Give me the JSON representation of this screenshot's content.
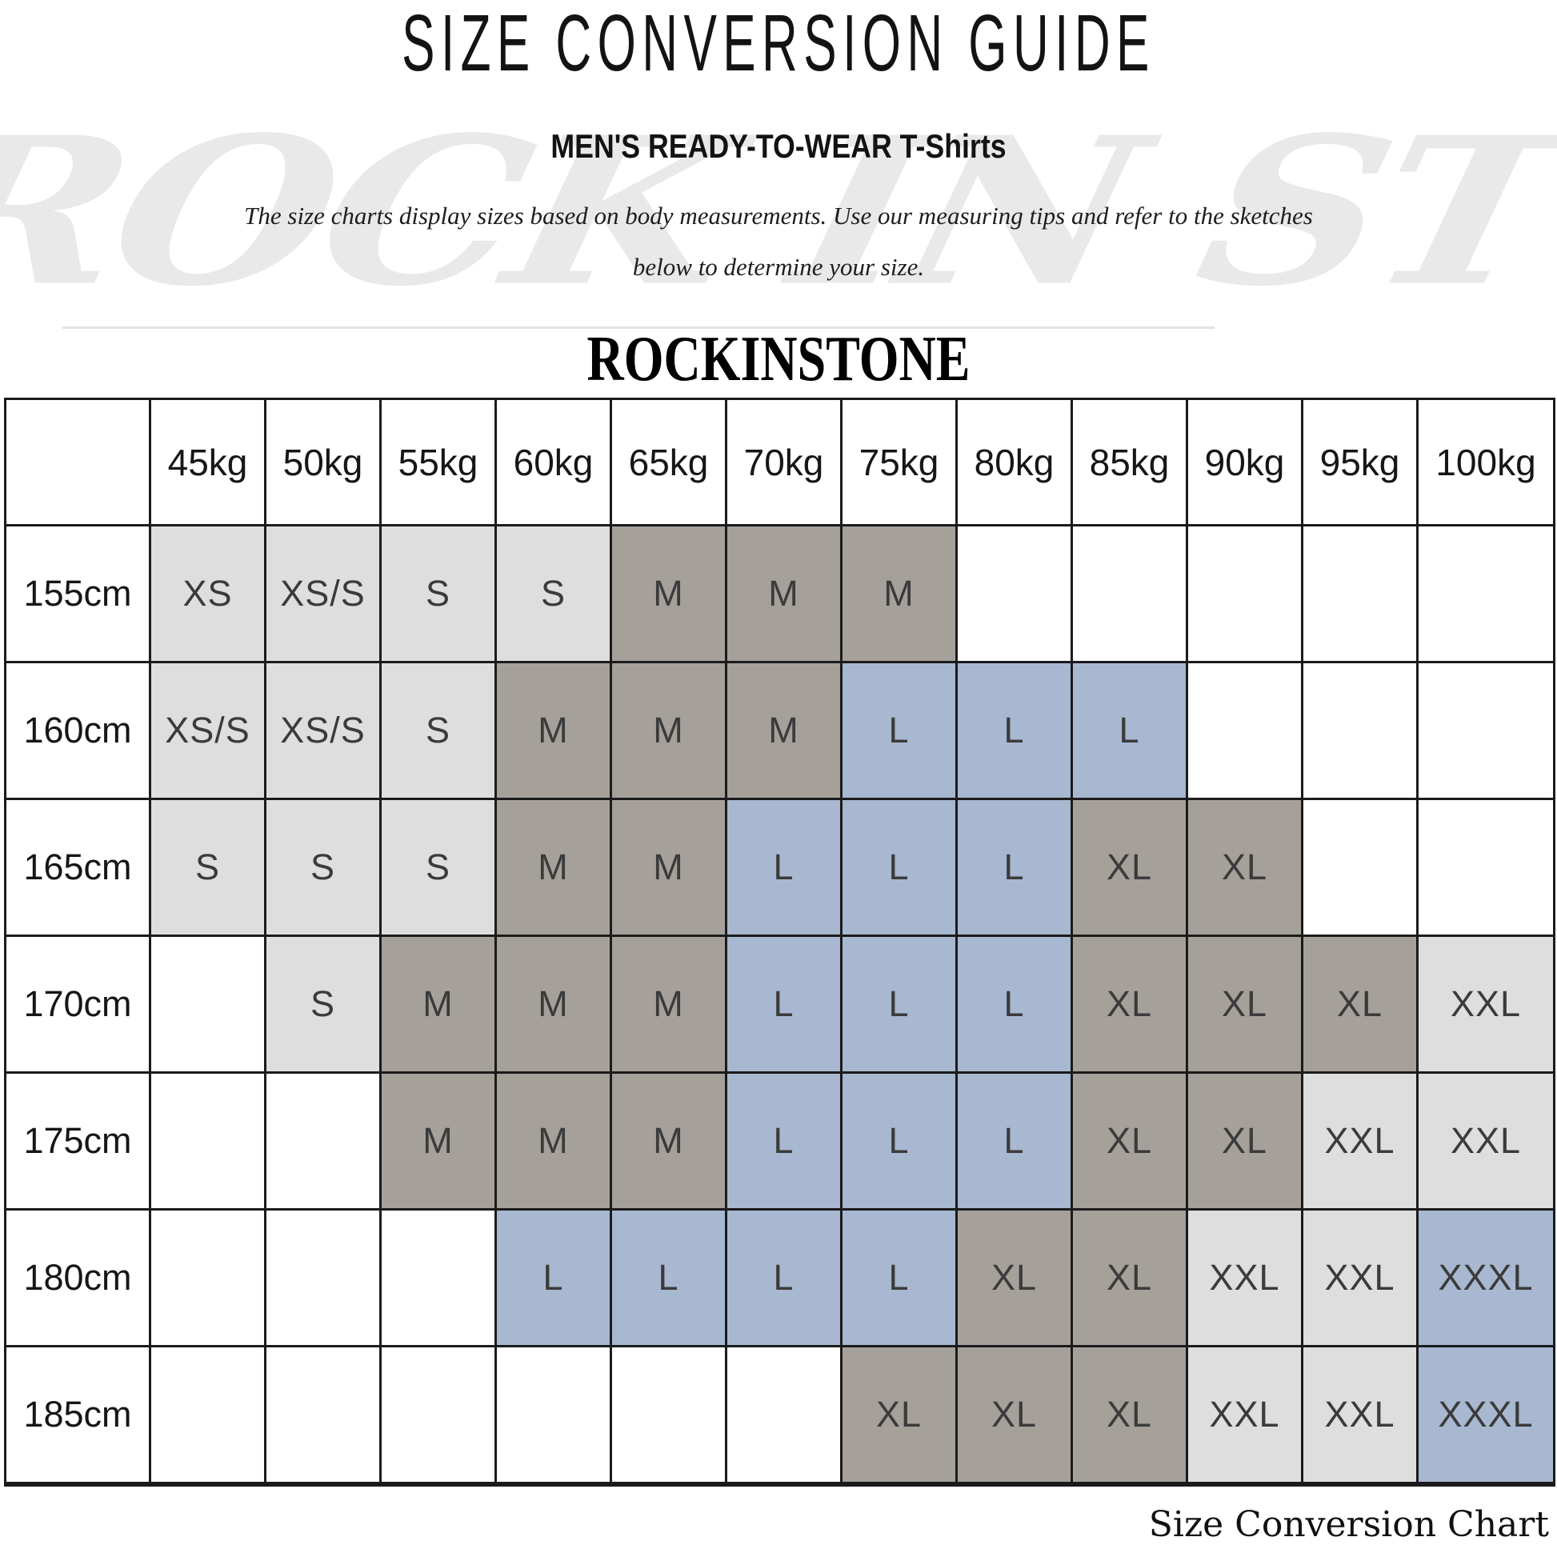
{
  "page": {
    "title": "SIZE CONVERSION GUIDE",
    "subtitle": "MEN'S READY-TO-WEAR T-Shirts",
    "description": [
      "The size charts display sizes based on body measurements.  Use our measuring tips and refer to the sketches",
      "below to determine your size."
    ],
    "brand": "ROCKINSTONE",
    "watermark_text": "ROCK IN STONE",
    "caption": "Size Conversion Chart"
  },
  "colors": {
    "cell_light": "#dedede",
    "cell_taupe": "#a6a09b",
    "cell_blue": "#a8b8d0",
    "diagonal_line": "#8a5f3d",
    "border": "#1b1b1b",
    "watermark": "#e9e9e9"
  },
  "chart_data": {
    "type": "table",
    "title": "SIZE CONVERSION GUIDE",
    "columns_axis": "body weight",
    "rows_axis": "body height",
    "weight_headers": [
      "45kg",
      "50kg",
      "55kg",
      "60kg",
      "65kg",
      "70kg",
      "75kg",
      "80kg",
      "85kg",
      "90kg",
      "95kg",
      "100kg"
    ],
    "rows": [
      {
        "height": "155cm",
        "cells": [
          {
            "size": "XS",
            "tone": "light"
          },
          {
            "size": "XS/S",
            "tone": "light"
          },
          {
            "size": "S",
            "tone": "light"
          },
          {
            "size": "S",
            "tone": "light"
          },
          {
            "size": "M",
            "tone": "taupe"
          },
          {
            "size": "M",
            "tone": "taupe"
          },
          {
            "size": "M",
            "tone": "taupe"
          },
          {
            "size": "",
            "tone": "none"
          },
          {
            "size": "",
            "tone": "none"
          },
          {
            "size": "",
            "tone": "none"
          },
          {
            "size": "",
            "tone": "none"
          },
          {
            "size": "",
            "tone": "none"
          }
        ]
      },
      {
        "height": "160cm",
        "cells": [
          {
            "size": "XS/S",
            "tone": "light"
          },
          {
            "size": "XS/S",
            "tone": "light"
          },
          {
            "size": "S",
            "tone": "light"
          },
          {
            "size": "M",
            "tone": "taupe"
          },
          {
            "size": "M",
            "tone": "taupe"
          },
          {
            "size": "M",
            "tone": "taupe"
          },
          {
            "size": "L",
            "tone": "blue"
          },
          {
            "size": "L",
            "tone": "blue"
          },
          {
            "size": "L",
            "tone": "blue"
          },
          {
            "size": "",
            "tone": "none"
          },
          {
            "size": "",
            "tone": "none"
          },
          {
            "size": "",
            "tone": "none"
          }
        ]
      },
      {
        "height": "165cm",
        "cells": [
          {
            "size": "S",
            "tone": "light"
          },
          {
            "size": "S",
            "tone": "light"
          },
          {
            "size": "S",
            "tone": "light"
          },
          {
            "size": "M",
            "tone": "taupe"
          },
          {
            "size": "M",
            "tone": "taupe"
          },
          {
            "size": "L",
            "tone": "blue"
          },
          {
            "size": "L",
            "tone": "blue"
          },
          {
            "size": "L",
            "tone": "blue"
          },
          {
            "size": "XL",
            "tone": "taupe"
          },
          {
            "size": "XL",
            "tone": "taupe"
          },
          {
            "size": "",
            "tone": "none"
          },
          {
            "size": "",
            "tone": "none"
          }
        ]
      },
      {
        "height": "170cm",
        "cells": [
          {
            "size": "",
            "tone": "none"
          },
          {
            "size": "S",
            "tone": "light"
          },
          {
            "size": "M",
            "tone": "taupe"
          },
          {
            "size": "M",
            "tone": "taupe"
          },
          {
            "size": "M",
            "tone": "taupe"
          },
          {
            "size": "L",
            "tone": "blue"
          },
          {
            "size": "L",
            "tone": "blue"
          },
          {
            "size": "L",
            "tone": "blue"
          },
          {
            "size": "XL",
            "tone": "taupe"
          },
          {
            "size": "XL",
            "tone": "taupe"
          },
          {
            "size": "XL",
            "tone": "taupe"
          },
          {
            "size": "XXL",
            "tone": "light"
          }
        ]
      },
      {
        "height": "175cm",
        "cells": [
          {
            "size": "",
            "tone": "none"
          },
          {
            "size": "",
            "tone": "none"
          },
          {
            "size": "M",
            "tone": "taupe"
          },
          {
            "size": "M",
            "tone": "taupe"
          },
          {
            "size": "M",
            "tone": "taupe"
          },
          {
            "size": "L",
            "tone": "blue"
          },
          {
            "size": "L",
            "tone": "blue"
          },
          {
            "size": "L",
            "tone": "blue"
          },
          {
            "size": "XL",
            "tone": "taupe"
          },
          {
            "size": "XL",
            "tone": "taupe"
          },
          {
            "size": "XXL",
            "tone": "light"
          },
          {
            "size": "XXL",
            "tone": "light"
          }
        ]
      },
      {
        "height": "180cm",
        "cells": [
          {
            "size": "",
            "tone": "none"
          },
          {
            "size": "",
            "tone": "none"
          },
          {
            "size": "",
            "tone": "none"
          },
          {
            "size": "L",
            "tone": "blue"
          },
          {
            "size": "L",
            "tone": "blue"
          },
          {
            "size": "L",
            "tone": "blue"
          },
          {
            "size": "L",
            "tone": "blue"
          },
          {
            "size": "XL",
            "tone": "taupe"
          },
          {
            "size": "XL",
            "tone": "taupe"
          },
          {
            "size": "XXL",
            "tone": "light"
          },
          {
            "size": "XXL",
            "tone": "light"
          },
          {
            "size": "XXXL",
            "tone": "blue"
          }
        ]
      },
      {
        "height": "185cm",
        "cells": [
          {
            "size": "",
            "tone": "none"
          },
          {
            "size": "",
            "tone": "none"
          },
          {
            "size": "",
            "tone": "none"
          },
          {
            "size": "",
            "tone": "none"
          },
          {
            "size": "",
            "tone": "none"
          },
          {
            "size": "",
            "tone": "none"
          },
          {
            "size": "XL",
            "tone": "taupe"
          },
          {
            "size": "XL",
            "tone": "taupe"
          },
          {
            "size": "XL",
            "tone": "taupe"
          },
          {
            "size": "XXL",
            "tone": "light"
          },
          {
            "size": "XXL",
            "tone": "light"
          },
          {
            "size": "XXXL",
            "tone": "blue"
          }
        ]
      }
    ]
  }
}
